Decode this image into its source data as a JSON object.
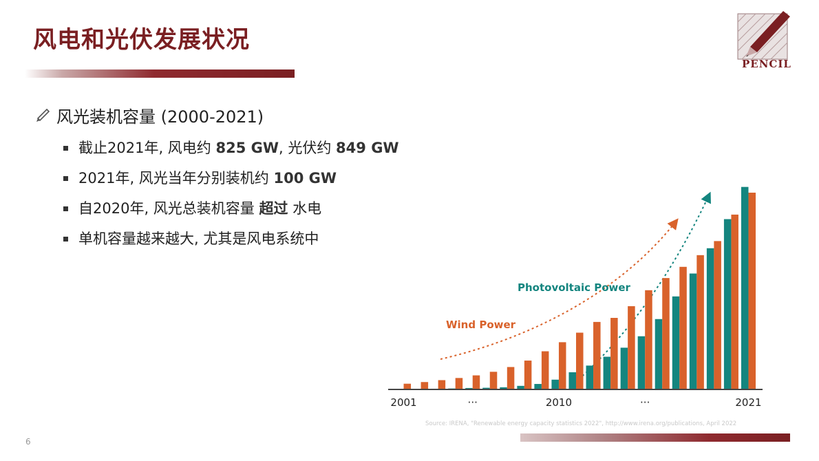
{
  "slide": {
    "title": "风电和光伏发展状况",
    "logo_text": "PENCIL",
    "page_number": "6",
    "heading": "风光装机容量 (2000-2021)",
    "bullets": [
      {
        "pre": "截止2021年, 风电约 ",
        "b1": "825 GW",
        "mid": ", 光伏约 ",
        "b2": "849 GW",
        "post": ""
      },
      {
        "pre": "2021年, 风光当年分别装机约 ",
        "b1": "100 GW",
        "mid": "",
        "b2": "",
        "post": ""
      },
      {
        "pre": "自2020年, 风光总装机容量 ",
        "b1": "超过",
        "mid": " 水电",
        "b2": "",
        "post": ""
      },
      {
        "pre": "单机容量越来越大, 尤其是风电系统中",
        "b1": "",
        "mid": "",
        "b2": "",
        "post": ""
      }
    ],
    "source": "Source: IRENA, \"Renewable energy capacity statistics 2022\", http://www.irena.org/publications, April 2022",
    "colors": {
      "accent": "#7a1f22",
      "wind": "#d9622b",
      "pv": "#14857f"
    }
  },
  "chart_data": {
    "type": "bar",
    "title": "",
    "xlabel": "",
    "ylabel": "",
    "categories": [
      "2001",
      "2002",
      "2003",
      "2004",
      "2005",
      "2006",
      "2007",
      "2008",
      "2009",
      "2010",
      "2011",
      "2012",
      "2013",
      "2014",
      "2015",
      "2016",
      "2017",
      "2018",
      "2019",
      "2020",
      "2021"
    ],
    "tick_labels": [
      "2001",
      "···",
      "2010",
      "···",
      "2021"
    ],
    "tick_positions": [
      "2001",
      "2005",
      "2010",
      "2015",
      "2021"
    ],
    "series": [
      {
        "name": "Wind Power",
        "color": "#d9622b",
        "values": [
          24,
          31,
          39,
          48,
          59,
          74,
          94,
          121,
          160,
          198,
          238,
          283,
          300,
          349,
          416,
          467,
          514,
          563,
          622,
          733,
          825
        ]
      },
      {
        "name": "Photovoltaic Power",
        "color": "#14857f",
        "values": [
          1,
          2,
          3,
          4,
          6,
          7,
          9,
          15,
          23,
          41,
          72,
          100,
          137,
          175,
          223,
          295,
          390,
          486,
          592,
          714,
          849
        ]
      }
    ],
    "annotations": [
      "Photovoltaic Power",
      "Wind Power"
    ],
    "ylim": [
      0,
      900
    ],
    "grid": false,
    "legend": "none"
  }
}
